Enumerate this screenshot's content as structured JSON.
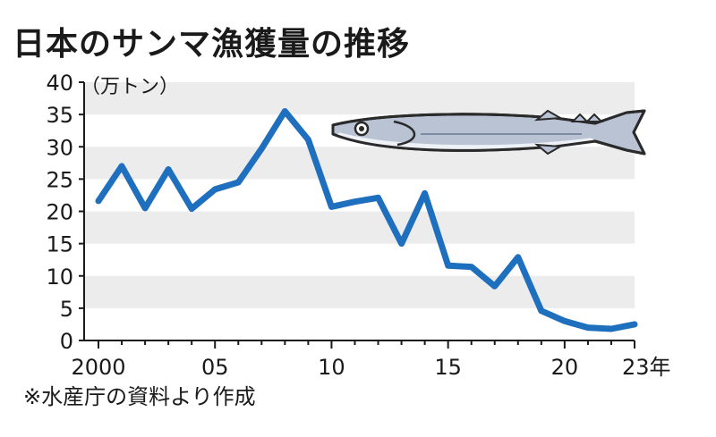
{
  "chart_data": {
    "type": "line",
    "title": "日本のサンマ漁獲量の推移",
    "unit_label": "（万トン）",
    "source": "※水産庁の資料より作成",
    "x_tick_labels": [
      {
        "x": 2000,
        "label": "2000"
      },
      {
        "x": 2005,
        "label": "05"
      },
      {
        "x": 2010,
        "label": "10"
      },
      {
        "x": 2015,
        "label": "15"
      },
      {
        "x": 2020,
        "label": "20"
      },
      {
        "x": 2023,
        "label": "23年"
      }
    ],
    "y_ticks": [
      0,
      5,
      10,
      15,
      20,
      25,
      30,
      35,
      40
    ],
    "ylim": [
      0,
      40
    ],
    "xlim": [
      2000,
      2023
    ],
    "band_fill": "#ececec",
    "line_color": "#1f6fbf",
    "illustration": "saury-fish",
    "series": [
      {
        "x": [
          2000,
          2001,
          2002,
          2003,
          2004,
          2005,
          2006,
          2007,
          2008,
          2009,
          2010,
          2011,
          2012,
          2013,
          2014,
          2015,
          2016,
          2017,
          2018,
          2019,
          2020,
          2021,
          2022,
          2023
        ],
        "values": [
          21.6,
          27.0,
          20.5,
          26.5,
          20.4,
          23.4,
          24.5,
          29.7,
          35.5,
          31.1,
          20.7,
          21.5,
          22.1,
          15.0,
          22.8,
          11.6,
          11.4,
          8.4,
          12.9,
          4.6,
          3.0,
          2.0,
          1.8,
          2.5
        ]
      }
    ]
  }
}
